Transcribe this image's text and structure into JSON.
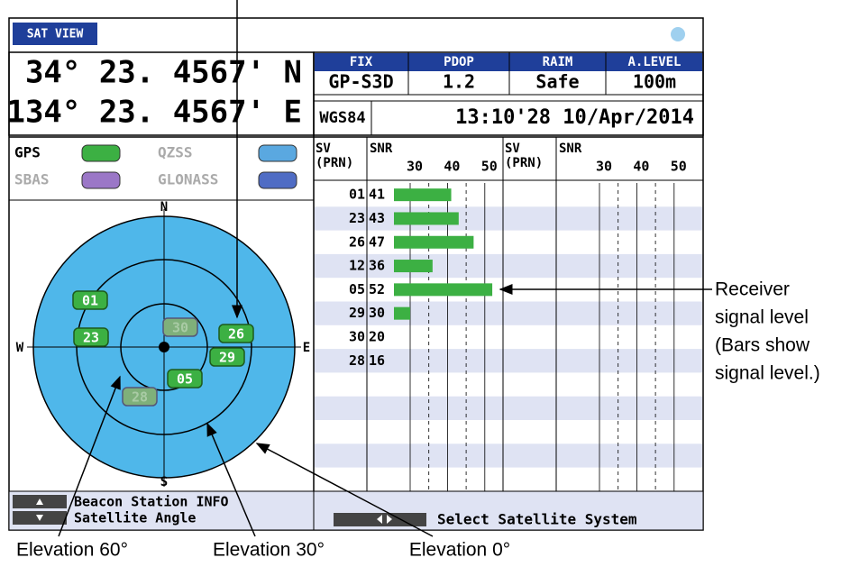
{
  "header": {
    "title": "SAT VIEW"
  },
  "position": {
    "lat": "34° 23. 4567' N",
    "lon": "134° 23. 4567' E"
  },
  "status": {
    "headers": [
      "FIX",
      "PDOP",
      "RAIM",
      "A.LEVEL"
    ],
    "values": [
      "GP-S3D",
      "1.2",
      "Safe",
      "100m"
    ],
    "datum": "WGS84",
    "time": "13:10'28 10/Apr/2014"
  },
  "legend": [
    {
      "name": "GPS",
      "color": "#3cb043"
    },
    {
      "name": "QZSS",
      "color": "#5aa8e0"
    },
    {
      "name": "SBAS",
      "color": "#9b77c7"
    },
    {
      "name": "GLONASS",
      "color": "#4f6cc4"
    }
  ],
  "compass": {
    "n": "N",
    "s": "S",
    "e": "E",
    "w": "W"
  },
  "satellites": [
    {
      "id": "01",
      "faded": false
    },
    {
      "id": "23",
      "faded": false
    },
    {
      "id": "30",
      "faded": true
    },
    {
      "id": "26",
      "faded": false
    },
    {
      "id": "29",
      "faded": false
    },
    {
      "id": "05",
      "faded": false
    },
    {
      "id": "28",
      "faded": true
    }
  ],
  "snr_table": {
    "sv_header": [
      "SV",
      "(PRN)"
    ],
    "snr_header": "SNR",
    "ticks": [
      30,
      40,
      50
    ],
    "rows": [
      {
        "sv": "01",
        "snr": 41
      },
      {
        "sv": "23",
        "snr": 43
      },
      {
        "sv": "26",
        "snr": 47
      },
      {
        "sv": "12",
        "snr": 36
      },
      {
        "sv": "05",
        "snr": 52
      },
      {
        "sv": "29",
        "snr": 30
      },
      {
        "sv": "30",
        "snr": 20
      },
      {
        "sv": "28",
        "snr": 16
      }
    ]
  },
  "softkeys": {
    "up": "Beacon Station INFO",
    "down": "Satellite Angle",
    "lr": "Select Satellite System"
  },
  "annotations": {
    "receiver": [
      "Receiver",
      "signal level",
      "(Bars show",
      "signal level.)"
    ],
    "elev60": "Elevation 60°",
    "elev30": "Elevation 30°",
    "elev0": "Elevation 0°"
  }
}
